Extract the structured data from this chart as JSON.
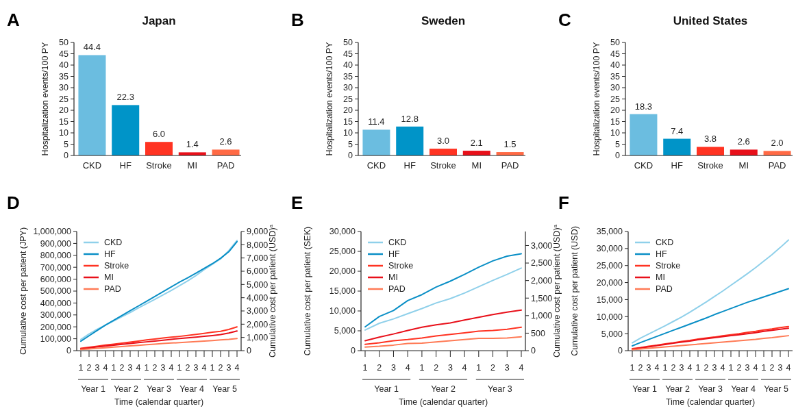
{
  "chart_data": [
    {
      "type": "bar",
      "title": "Japan",
      "annotations": [
        "A"
      ],
      "ylabel": "Hospitalization events/100 PY",
      "categories": [
        "CKD",
        "HF",
        "Stroke",
        "MI",
        "PAD"
      ],
      "values": [
        44.4,
        22.3,
        6.0,
        1.4,
        2.6
      ],
      "value_labels": [
        "44.4",
        "22.3",
        "6.0",
        "1.4",
        "2.6"
      ],
      "colors": [
        "#6bbde0",
        "#0094c8",
        "#ff3322",
        "#e8101a",
        "#ff6a45"
      ],
      "ylim": [
        0,
        50
      ],
      "yticks": [
        0,
        5,
        10,
        15,
        20,
        25,
        30,
        35,
        40,
        45,
        50
      ],
      "grid": false
    },
    {
      "type": "bar",
      "title": "Sweden",
      "annotations": [
        "B"
      ],
      "ylabel": "Hospitalization events/100 PY",
      "categories": [
        "CKD",
        "HF",
        "Stroke",
        "MI",
        "PAD"
      ],
      "values": [
        11.4,
        12.8,
        3.0,
        2.1,
        1.5
      ],
      "value_labels": [
        "11.4",
        "12.8",
        "3.0",
        "2.1",
        "1.5"
      ],
      "colors": [
        "#6bbde0",
        "#0094c8",
        "#ff3322",
        "#e8101a",
        "#ff6a45"
      ],
      "ylim": [
        0,
        50
      ],
      "yticks": [
        0,
        5,
        10,
        15,
        20,
        25,
        30,
        35,
        40,
        45,
        50
      ],
      "grid": false
    },
    {
      "type": "bar",
      "title": "United States",
      "annotations": [
        "C"
      ],
      "ylabel": "Hospitalization events/100 PY",
      "categories": [
        "CKD",
        "HF",
        "Stroke",
        "MI",
        "PAD"
      ],
      "values": [
        18.3,
        7.4,
        3.8,
        2.6,
        2.0
      ],
      "value_labels": [
        "18.3",
        "7.4",
        "3.8",
        "2.6",
        "2.0"
      ],
      "colors": [
        "#6bbde0",
        "#0094c8",
        "#ff3322",
        "#e8101a",
        "#ff6a45"
      ],
      "ylim": [
        0,
        50
      ],
      "yticks": [
        0,
        5,
        10,
        15,
        20,
        25,
        30,
        35,
        40,
        45,
        50
      ],
      "grid": false
    },
    {
      "type": "line",
      "annotations": [
        "D",
        "Year 1",
        "Year 2",
        "Year 3",
        "Year 4",
        "Year 5"
      ],
      "xlabel": "Time (calendar quarter)",
      "ylabel": "Cumulative cost per patient (JPY)",
      "y2label": "Cumulative cost per patient (USD)$^{a}$",
      "categories": [
        "1",
        "2",
        "3",
        "4",
        "1",
        "2",
        "3",
        "4",
        "1",
        "2",
        "3",
        "4",
        "1",
        "2",
        "3",
        "4",
        "1",
        "2",
        "3",
        "4"
      ],
      "ylim": [
        0,
        1000000
      ],
      "yticks": [
        {
          "value": 0,
          "label": "0"
        },
        {
          "value": 100000,
          "label": "100,000"
        },
        {
          "value": 200000,
          "label": "200,000"
        },
        {
          "value": 300000,
          "label": "300,000"
        },
        {
          "value": 400000,
          "label": "400,000"
        },
        {
          "value": 500000,
          "label": "500,000"
        },
        {
          "value": 600000,
          "label": "600,000"
        },
        {
          "value": 700000,
          "label": "700,000"
        },
        {
          "value": 800000,
          "label": "800,000"
        },
        {
          "value": 900000,
          "label": "900,000"
        },
        {
          "value": 1000000,
          "label": "1,000,000"
        }
      ],
      "y2lim": [
        0,
        9000
      ],
      "y2ticks": [
        {
          "value": 0,
          "label": "0"
        },
        {
          "value": 1000,
          "label": "1,000"
        },
        {
          "value": 2000,
          "label": "2,000"
        },
        {
          "value": 3000,
          "label": "3,000"
        },
        {
          "value": 4000,
          "label": "4,000"
        },
        {
          "value": 5000,
          "label": "5,000"
        },
        {
          "value": 6000,
          "label": "6,000"
        },
        {
          "value": 7000,
          "label": "7,000"
        },
        {
          "value": 8000,
          "label": "8,000"
        },
        {
          "value": 9000,
          "label": "9,000"
        }
      ],
      "legend": "top left",
      "grid": false,
      "marker": "none",
      "series": [
        {
          "name": "CKD",
          "color": "#8fd0ea",
          "values": [
            95000,
            140000,
            180000,
            215000,
            250000,
            285000,
            320000,
            358000,
            395000,
            430000,
            468000,
            505000,
            545000,
            585000,
            630000,
            680000,
            725000,
            770000,
            840000,
            925000
          ]
        },
        {
          "name": "HF",
          "color": "#0a8fc6",
          "values": [
            80000,
            125000,
            170000,
            215000,
            255000,
            295000,
            335000,
            375000,
            415000,
            455000,
            495000,
            535000,
            575000,
            612000,
            650000,
            690000,
            730000,
            775000,
            830000,
            915000
          ]
        },
        {
          "name": "Stroke",
          "color": "#ff3322",
          "values": [
            20000,
            29000,
            38000,
            47000,
            55000,
            63000,
            72000,
            81000,
            90000,
            98000,
            106000,
            113000,
            120000,
            128000,
            136000,
            145000,
            155000,
            162000,
            178000,
            200000
          ]
        },
        {
          "name": "MI",
          "color": "#e8101a",
          "values": [
            15000,
            23000,
            31000,
            39000,
            46000,
            53000,
            60000,
            67000,
            74000,
            81000,
            88000,
            95000,
            102000,
            108000,
            114000,
            120000,
            127000,
            135000,
            148000,
            165000
          ]
        },
        {
          "name": "PAD",
          "color": "#ff7a55",
          "values": [
            10000,
            15000,
            20000,
            25000,
            30000,
            35000,
            40000,
            45000,
            50000,
            55000,
            60000,
            64000,
            68000,
            72000,
            76000,
            80000,
            85000,
            90000,
            95000,
            102000
          ]
        }
      ]
    },
    {
      "type": "line",
      "annotations": [
        "E",
        "Year 1",
        "Year 2",
        "Year 3"
      ],
      "xlabel": "Time (calendar quarter)",
      "ylabel": "Cumulative cost per patient (SEK)",
      "y2label": "Cumulative cost per patient (USD)$^{a}$",
      "categories": [
        "1",
        "2",
        "3",
        "4",
        "1",
        "2",
        "3",
        "4",
        "1",
        "2",
        "3",
        "4"
      ],
      "ylim": [
        0,
        30000
      ],
      "yticks": [
        {
          "value": 0,
          "label": "0"
        },
        {
          "value": 5000,
          "label": "5,000"
        },
        {
          "value": 10000,
          "label": "10,000"
        },
        {
          "value": 15000,
          "label": "15,000"
        },
        {
          "value": 20000,
          "label": "20,000"
        },
        {
          "value": 25000,
          "label": "25,000"
        },
        {
          "value": 30000,
          "label": "30,000"
        }
      ],
      "y2lim": [
        0,
        3400
      ],
      "y2ticks": [
        {
          "value": 0,
          "label": "0"
        },
        {
          "value": 500,
          "label": "500"
        },
        {
          "value": 1000,
          "label": "1,000"
        },
        {
          "value": 1500,
          "label": "1,500"
        },
        {
          "value": 2000,
          "label": "2,000"
        },
        {
          "value": 2500,
          "label": "2,500"
        },
        {
          "value": 3000,
          "label": "3,000"
        }
      ],
      "legend": "top left",
      "grid": false,
      "marker": "none",
      "series": [
        {
          "name": "CKD",
          "color": "#8fd0ea",
          "values": [
            5200,
            6900,
            8000,
            9300,
            10600,
            12000,
            13100,
            14500,
            16100,
            17700,
            19200,
            20800
          ]
        },
        {
          "name": "HF",
          "color": "#0a8fc6",
          "values": [
            6000,
            8600,
            10100,
            12600,
            14100,
            16000,
            17500,
            19200,
            21000,
            22600,
            23800,
            24400
          ]
        },
        {
          "name": "Stroke",
          "color": "#ff3322",
          "values": [
            1600,
            2000,
            2500,
            2800,
            3200,
            3700,
            4100,
            4500,
            4900,
            5100,
            5400,
            5900
          ]
        },
        {
          "name": "MI",
          "color": "#e8101a",
          "values": [
            2500,
            3400,
            4200,
            5100,
            5900,
            6500,
            7000,
            7700,
            8400,
            9100,
            9700,
            10200
          ]
        },
        {
          "name": "PAD",
          "color": "#ff7a55",
          "values": [
            900,
            1100,
            1400,
            1800,
            1900,
            2200,
            2500,
            2800,
            3100,
            3100,
            3200,
            3500
          ]
        }
      ]
    },
    {
      "type": "line",
      "annotations": [
        "F",
        "Year 1",
        "Year 2",
        "Year 3",
        "Year 4",
        "Year 5"
      ],
      "xlabel": "Time (calendar quarter)",
      "ylabel": "Cumulative cost per patient (USD)",
      "categories": [
        "1",
        "2",
        "3",
        "4",
        "1",
        "2",
        "3",
        "4",
        "1",
        "2",
        "3",
        "4",
        "1",
        "2",
        "3",
        "4",
        "1",
        "2",
        "3",
        "4"
      ],
      "ylim": [
        0,
        35000
      ],
      "yticks": [
        {
          "value": 0,
          "label": "0"
        },
        {
          "value": 5000,
          "label": "5,000"
        },
        {
          "value": 10000,
          "label": "10,000"
        },
        {
          "value": 15000,
          "label": "15,000"
        },
        {
          "value": 20000,
          "label": "20,000"
        },
        {
          "value": 25000,
          "label": "25,000"
        },
        {
          "value": 30000,
          "label": "30,000"
        },
        {
          "value": 35000,
          "label": "35,000"
        }
      ],
      "legend": "top left",
      "grid": false,
      "marker": "none",
      "series": [
        {
          "name": "CKD",
          "color": "#8fd0ea",
          "values": [
            2300,
            3700,
            4900,
            6100,
            7300,
            8600,
            9900,
            11300,
            12800,
            14300,
            15900,
            17500,
            19200,
            20900,
            22600,
            24400,
            26300,
            28200,
            30300,
            32500
          ]
        },
        {
          "name": "HF",
          "color": "#0a8fc6",
          "values": [
            1400,
            2400,
            3300,
            4200,
            5100,
            6000,
            6900,
            7800,
            8700,
            9600,
            10600,
            11500,
            12400,
            13300,
            14200,
            15000,
            15800,
            16600,
            17400,
            18200
          ]
        },
        {
          "name": "Stroke",
          "color": "#ff3322",
          "values": [
            600,
            900,
            1300,
            1600,
            2000,
            2300,
            2700,
            3000,
            3400,
            3700,
            4000,
            4400,
            4700,
            5000,
            5400,
            5700,
            6100,
            6400,
            6800,
            7100
          ]
        },
        {
          "name": "MI",
          "color": "#e8101a",
          "values": [
            400,
            800,
            1100,
            1500,
            1800,
            2200,
            2500,
            2800,
            3200,
            3500,
            3800,
            4100,
            4400,
            4700,
            5000,
            5300,
            5700,
            6000,
            6300,
            6600
          ]
        },
        {
          "name": "PAD",
          "color": "#ff7a55",
          "values": [
            300,
            500,
            700,
            900,
            1100,
            1300,
            1500,
            1700,
            1900,
            2100,
            2300,
            2500,
            2700,
            2900,
            3100,
            3300,
            3600,
            3800,
            4100,
            4400
          ]
        }
      ]
    }
  ]
}
